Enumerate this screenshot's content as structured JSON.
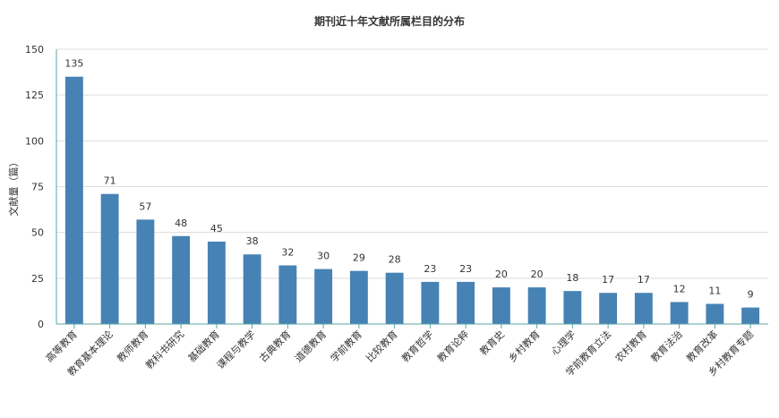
{
  "chart_data": {
    "type": "bar",
    "title": "期刊近十年文献所属栏目的分布",
    "xlabel": "",
    "ylabel": "文献量（篇）",
    "ylim": [
      0,
      150
    ],
    "yticks": [
      0,
      25,
      50,
      75,
      100,
      125,
      150
    ],
    "grid": true,
    "categories": [
      "高等教育",
      "教育基本理论",
      "教师教育",
      "教科书研究",
      "基础教育",
      "课程与教学",
      "古典教育",
      "道德教育",
      "学前教育",
      "比较教育",
      "教育哲学",
      "教育论粹",
      "教育史",
      "乡村教育",
      "心理学",
      "学前教育立法",
      "农村教育",
      "教育法治",
      "教育改革",
      "乡村教育专题"
    ],
    "values": [
      135,
      71,
      57,
      48,
      45,
      38,
      32,
      30,
      29,
      28,
      23,
      23,
      20,
      20,
      18,
      17,
      17,
      12,
      11,
      9
    ],
    "bar_color": "#4682b4",
    "axis_color": "#5aa6a6",
    "grid_color": "#dddddd"
  }
}
